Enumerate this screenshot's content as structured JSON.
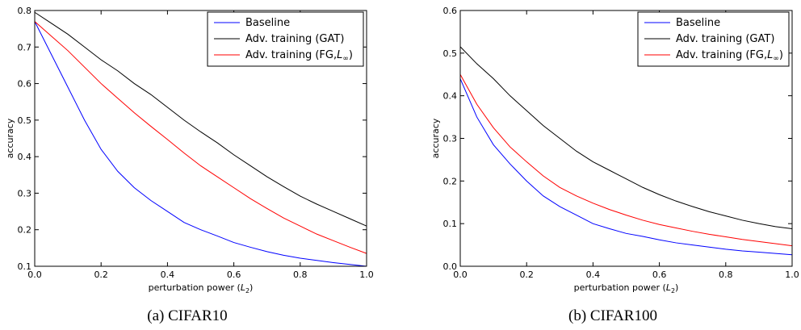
{
  "chart_data": [
    {
      "type": "line",
      "caption": "(a) CIFAR10",
      "xlabel": "perturbation power (L",
      "xlabel_sub": "2",
      "xlabel_close": ")",
      "ylabel": "accuracy",
      "xlim": [
        0.0,
        1.0
      ],
      "ylim": [
        0.1,
        0.8
      ],
      "xticks": [
        "0.0",
        "0.2",
        "0.4",
        "0.6",
        "0.8",
        "1.0"
      ],
      "yticks": [
        "0.1",
        "0.2",
        "0.3",
        "0.4",
        "0.5",
        "0.6",
        "0.7",
        "0.8"
      ],
      "legend_position": "top-right",
      "x": [
        0.0,
        0.05,
        0.1,
        0.15,
        0.2,
        0.25,
        0.3,
        0.35,
        0.4,
        0.45,
        0.5,
        0.55,
        0.6,
        0.65,
        0.7,
        0.75,
        0.8,
        0.85,
        0.9,
        0.95,
        1.0
      ],
      "series": [
        {
          "name": "Baseline",
          "color": "#0000ff",
          "values": [
            0.77,
            0.68,
            0.59,
            0.5,
            0.42,
            0.36,
            0.315,
            0.28,
            0.25,
            0.22,
            0.2,
            0.183,
            0.165,
            0.152,
            0.14,
            0.13,
            0.122,
            0.116,
            0.11,
            0.105,
            0.1
          ]
        },
        {
          "name": "Adv. training (GAT)",
          "color": "#000000",
          "values": [
            0.795,
            0.765,
            0.735,
            0.7,
            0.665,
            0.635,
            0.6,
            0.57,
            0.535,
            0.5,
            0.468,
            0.438,
            0.405,
            0.375,
            0.345,
            0.318,
            0.292,
            0.27,
            0.25,
            0.23,
            0.21
          ]
        },
        {
          "name": "Adv. training (FG,",
          "name_math": "L",
          "name_sub": "∞",
          "name_close": ")",
          "color": "#ff0000",
          "values": [
            0.77,
            0.73,
            0.69,
            0.645,
            0.6,
            0.56,
            0.52,
            0.483,
            0.447,
            0.41,
            0.375,
            0.345,
            0.315,
            0.285,
            0.258,
            0.232,
            0.21,
            0.188,
            0.17,
            0.152,
            0.135
          ]
        }
      ]
    },
    {
      "type": "line",
      "caption": "(b) CIFAR100",
      "xlabel": "perturbation power (L",
      "xlabel_sub": "2",
      "xlabel_close": ")",
      "ylabel": "accuracy",
      "xlim": [
        0.0,
        1.0
      ],
      "ylim": [
        0.0,
        0.6
      ],
      "xticks": [
        "0.0",
        "0.2",
        "0.4",
        "0.6",
        "0.8",
        "1.0"
      ],
      "yticks": [
        "0.0",
        "0.1",
        "0.2",
        "0.3",
        "0.4",
        "0.5",
        "0.6"
      ],
      "legend_position": "top-right",
      "x": [
        0.0,
        0.05,
        0.1,
        0.15,
        0.2,
        0.25,
        0.3,
        0.35,
        0.4,
        0.45,
        0.5,
        0.55,
        0.6,
        0.65,
        0.7,
        0.75,
        0.8,
        0.85,
        0.9,
        0.95,
        1.0
      ],
      "series": [
        {
          "name": "Baseline",
          "color": "#0000ff",
          "values": [
            0.44,
            0.35,
            0.285,
            0.24,
            0.2,
            0.165,
            0.14,
            0.12,
            0.1,
            0.088,
            0.077,
            0.07,
            0.062,
            0.055,
            0.05,
            0.045,
            0.04,
            0.036,
            0.033,
            0.03,
            0.027
          ]
        },
        {
          "name": "Adv. training (GAT)",
          "color": "#000000",
          "values": [
            0.515,
            0.475,
            0.44,
            0.4,
            0.365,
            0.33,
            0.3,
            0.27,
            0.245,
            0.225,
            0.205,
            0.185,
            0.168,
            0.153,
            0.14,
            0.128,
            0.118,
            0.108,
            0.1,
            0.093,
            0.088
          ]
        },
        {
          "name": "Adv. training (FG,",
          "name_math": "L",
          "name_sub": "∞",
          "name_close": ")",
          "color": "#ff0000",
          "values": [
            0.45,
            0.38,
            0.325,
            0.28,
            0.245,
            0.212,
            0.185,
            0.165,
            0.148,
            0.133,
            0.12,
            0.108,
            0.098,
            0.09,
            0.082,
            0.075,
            0.069,
            0.063,
            0.058,
            0.053,
            0.048
          ]
        }
      ]
    }
  ]
}
